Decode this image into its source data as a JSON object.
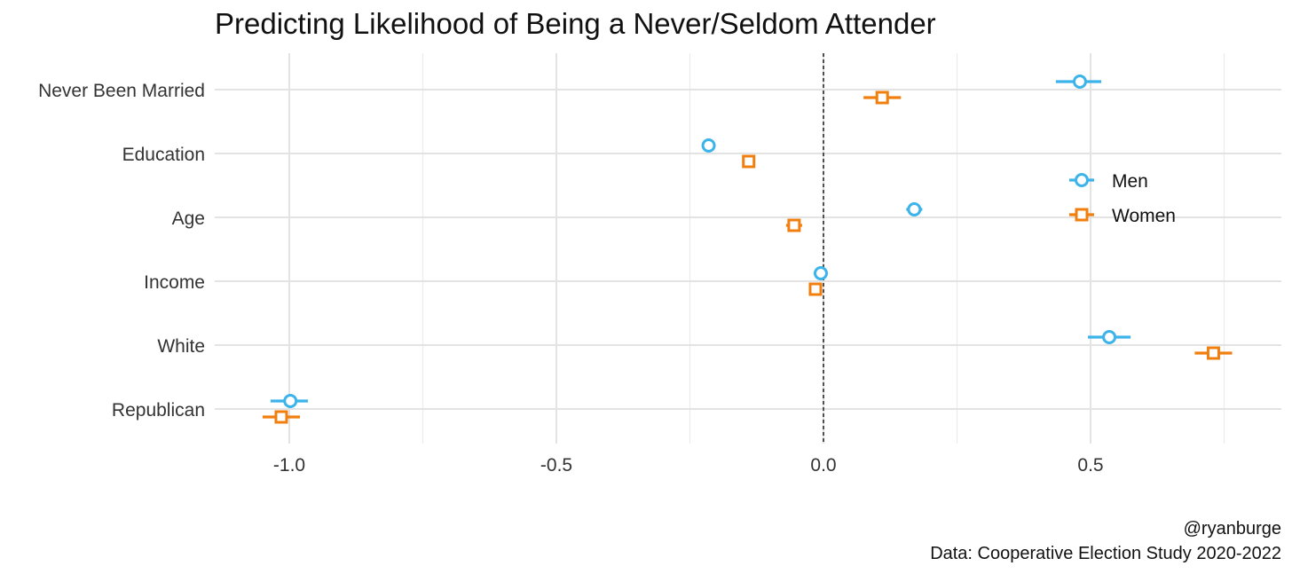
{
  "chart_data": {
    "type": "scatter",
    "title": "Predicting Likelihood of Being a Never/Seldom Attender",
    "xlabel": "",
    "ylabel": "",
    "xlim": [
      -1.15,
      0.85
    ],
    "x_ticks": [
      -1.0,
      -0.5,
      0.0,
      0.5
    ],
    "x_tick_labels": [
      "-1.0",
      "-0.5",
      "0.0",
      "0.5"
    ],
    "categories": [
      "Never Been Married",
      "Education",
      "Age",
      "Income",
      "White",
      "Republican"
    ],
    "reference_line": 0,
    "grid": true,
    "legend_position": "right",
    "series": [
      {
        "name": "Men",
        "color": "#3CB4EA",
        "marker": "circle",
        "estimates": [
          0.48,
          -0.215,
          0.17,
          -0.005,
          0.535,
          -0.998
        ],
        "ci_low": [
          0.435,
          -0.225,
          0.155,
          -0.015,
          0.495,
          -1.035
        ],
        "ci_high": [
          0.52,
          -0.205,
          0.185,
          0.005,
          0.575,
          -0.965
        ]
      },
      {
        "name": "Women",
        "color": "#F07F0F",
        "marker": "square",
        "estimates": [
          0.11,
          -0.14,
          -0.055,
          -0.015,
          0.73,
          -1.015
        ],
        "ci_low": [
          0.075,
          -0.15,
          -0.07,
          -0.025,
          0.695,
          -1.05
        ],
        "ci_high": [
          0.145,
          -0.13,
          -0.04,
          -0.005,
          0.765,
          -0.98
        ]
      }
    ]
  },
  "caption": {
    "author": "@ryanburge",
    "source": "Data: Cooperative Election Study 2020-2022"
  }
}
